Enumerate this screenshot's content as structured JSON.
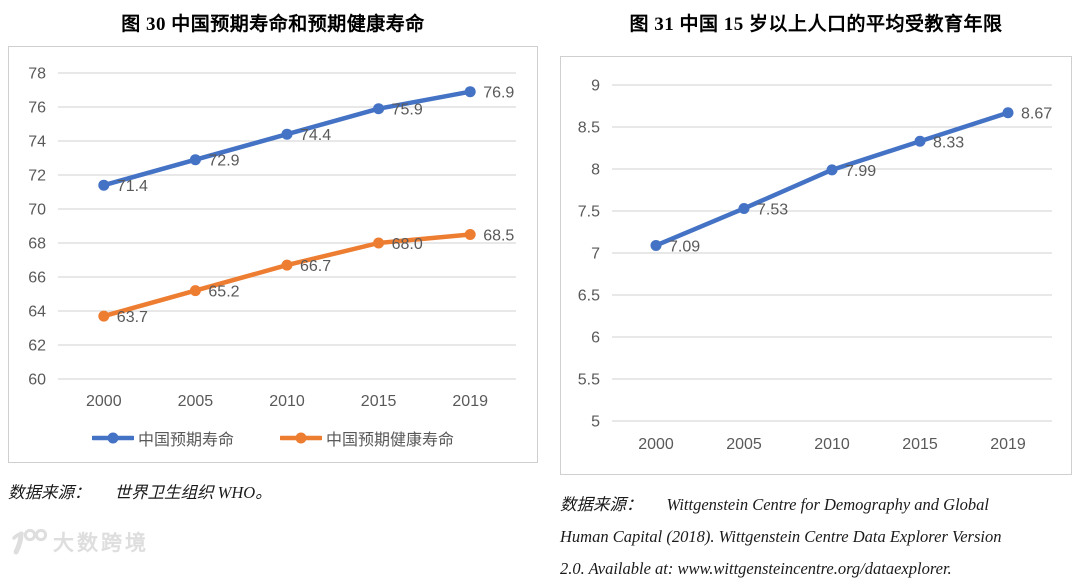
{
  "watermark": {
    "text": "大数跨境",
    "icon": "brand-100-logo",
    "color": "#dedede"
  },
  "chart_data": [
    {
      "type": "line",
      "title": "图 30  中国预期寿命和预期健康寿命",
      "categories": [
        "2000",
        "2005",
        "2010",
        "2015",
        "2019"
      ],
      "series": [
        {
          "name": "中国预期寿命",
          "color": "#4472C4",
          "values": [
            71.4,
            72.9,
            74.4,
            75.9,
            76.9
          ],
          "labels": [
            "71.4",
            "72.9",
            "74.4",
            "75.9",
            "76.9"
          ]
        },
        {
          "name": "中国预期健康寿命",
          "color": "#ED7D31",
          "values": [
            63.7,
            65.2,
            66.7,
            68.0,
            68.5
          ],
          "labels": [
            "63.7",
            "65.2",
            "66.7",
            "68.0",
            "68.5"
          ]
        }
      ],
      "xlabel": "",
      "ylabel": "",
      "ylim": [
        60,
        78
      ],
      "ytick_step": 2,
      "grid": true,
      "grid_color": "#d9d9d9",
      "axis_color": "#595959",
      "legend_position": "bottom",
      "source": {
        "prefix": "数据来源：",
        "lines": [
          "世界卫生组织 WHO。"
        ]
      }
    },
    {
      "type": "line",
      "title": "图 31  中国 15 岁以上人口的平均受教育年限",
      "categories": [
        "2000",
        "2005",
        "2010",
        "2015",
        "2019"
      ],
      "series": [
        {
          "name": "平均受教育年限",
          "color": "#4472C4",
          "values": [
            7.09,
            7.53,
            7.99,
            8.33,
            8.67
          ],
          "labels": [
            "7.09",
            "7.53",
            "7.99",
            "8.33",
            "8.67"
          ]
        }
      ],
      "xlabel": "",
      "ylabel": "",
      "ylim": [
        5,
        9
      ],
      "ytick_step": 0.5,
      "grid": true,
      "grid_color": "#d9d9d9",
      "axis_color": "#595959",
      "legend_position": "none",
      "source": {
        "prefix": "数据来源：",
        "lines": [
          "Wittgenstein Centre for Demography and Global",
          "Human Capital (2018). Wittgenstein Centre Data Explorer Version",
          "2.0. Available at: www.wittgensteincentre.org/dataexplorer."
        ]
      }
    }
  ]
}
